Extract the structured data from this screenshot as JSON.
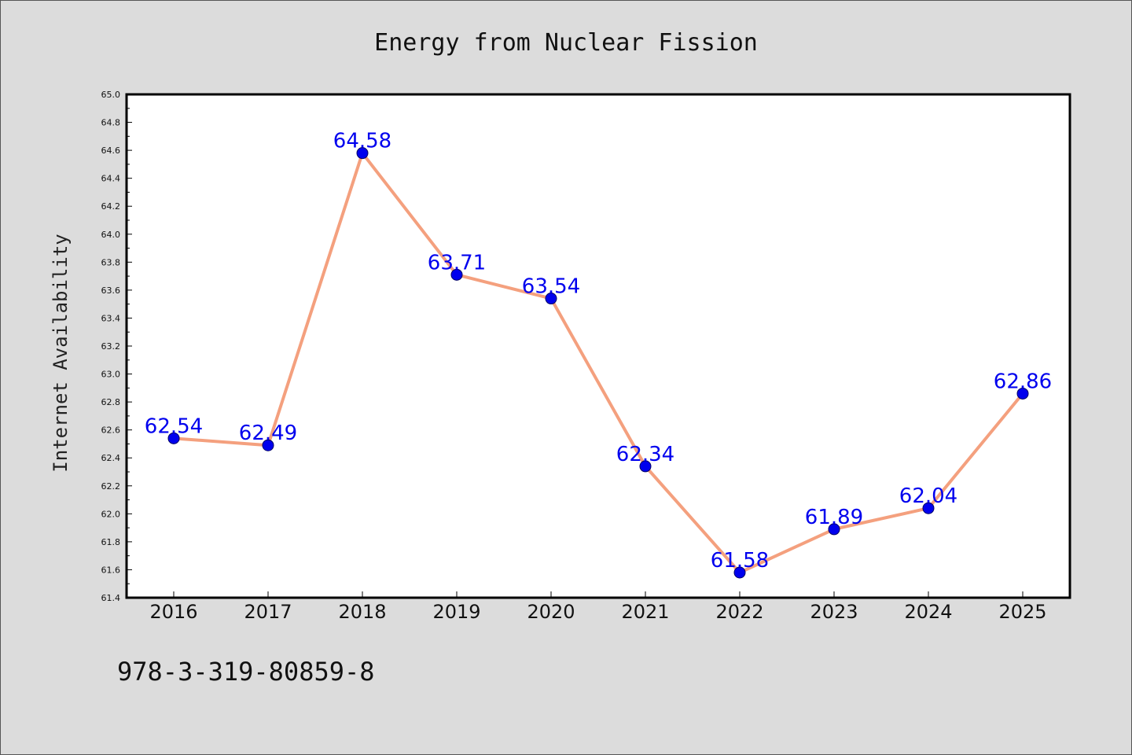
{
  "colors": {
    "background": "#dcdcdc",
    "plot_background": "#ffffff",
    "line": "#f4a07e",
    "marker": "#0000ee",
    "marker_edge": "#000066",
    "data_label": "#0000ee",
    "axis": "#000000"
  },
  "footer": {
    "text": "978-3-319-80859-8"
  },
  "chart_data": {
    "type": "line",
    "title": "Energy from Nuclear Fission",
    "xlabel": "",
    "ylabel": "Internet Availability",
    "categories": [
      "2016",
      "2017",
      "2018",
      "2019",
      "2020",
      "2021",
      "2022",
      "2023",
      "2024",
      "2025"
    ],
    "series": [
      {
        "values": [
          62.54,
          62.49,
          64.58,
          63.71,
          63.54,
          62.34,
          61.58,
          61.89,
          62.04,
          62.86
        ],
        "labels": [
          "62.54",
          "62.49",
          "64.58",
          "63.71",
          "63.54",
          "62.34",
          "61.58",
          "61.89",
          "62.04",
          "62.86"
        ]
      }
    ],
    "ylim": [
      61.4,
      65.0
    ],
    "yticks": [
      "61.4",
      "61.6",
      "61.8",
      "62.0",
      "62.2",
      "62.4",
      "62.6",
      "62.8",
      "63.0",
      "63.2",
      "63.4",
      "63.6",
      "63.8",
      "64.0",
      "64.2",
      "64.4",
      "64.6",
      "64.8",
      "65.0"
    ],
    "grid": false,
    "legend": "none"
  }
}
